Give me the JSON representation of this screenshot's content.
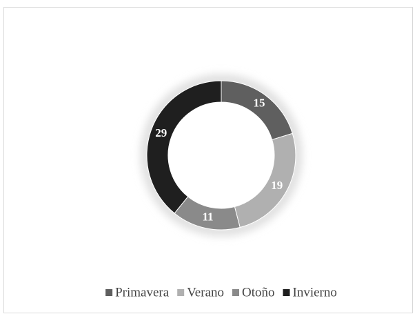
{
  "chart_data": {
    "type": "donut",
    "categories": [
      "Primavera",
      "Verano",
      "Otoño",
      "Invierno"
    ],
    "values": [
      15,
      19,
      11,
      29
    ],
    "colors": [
      "#5f5f5f",
      "#b0b0b0",
      "#8a8a8a",
      "#1f1f1f"
    ],
    "legend": "bottom"
  }
}
